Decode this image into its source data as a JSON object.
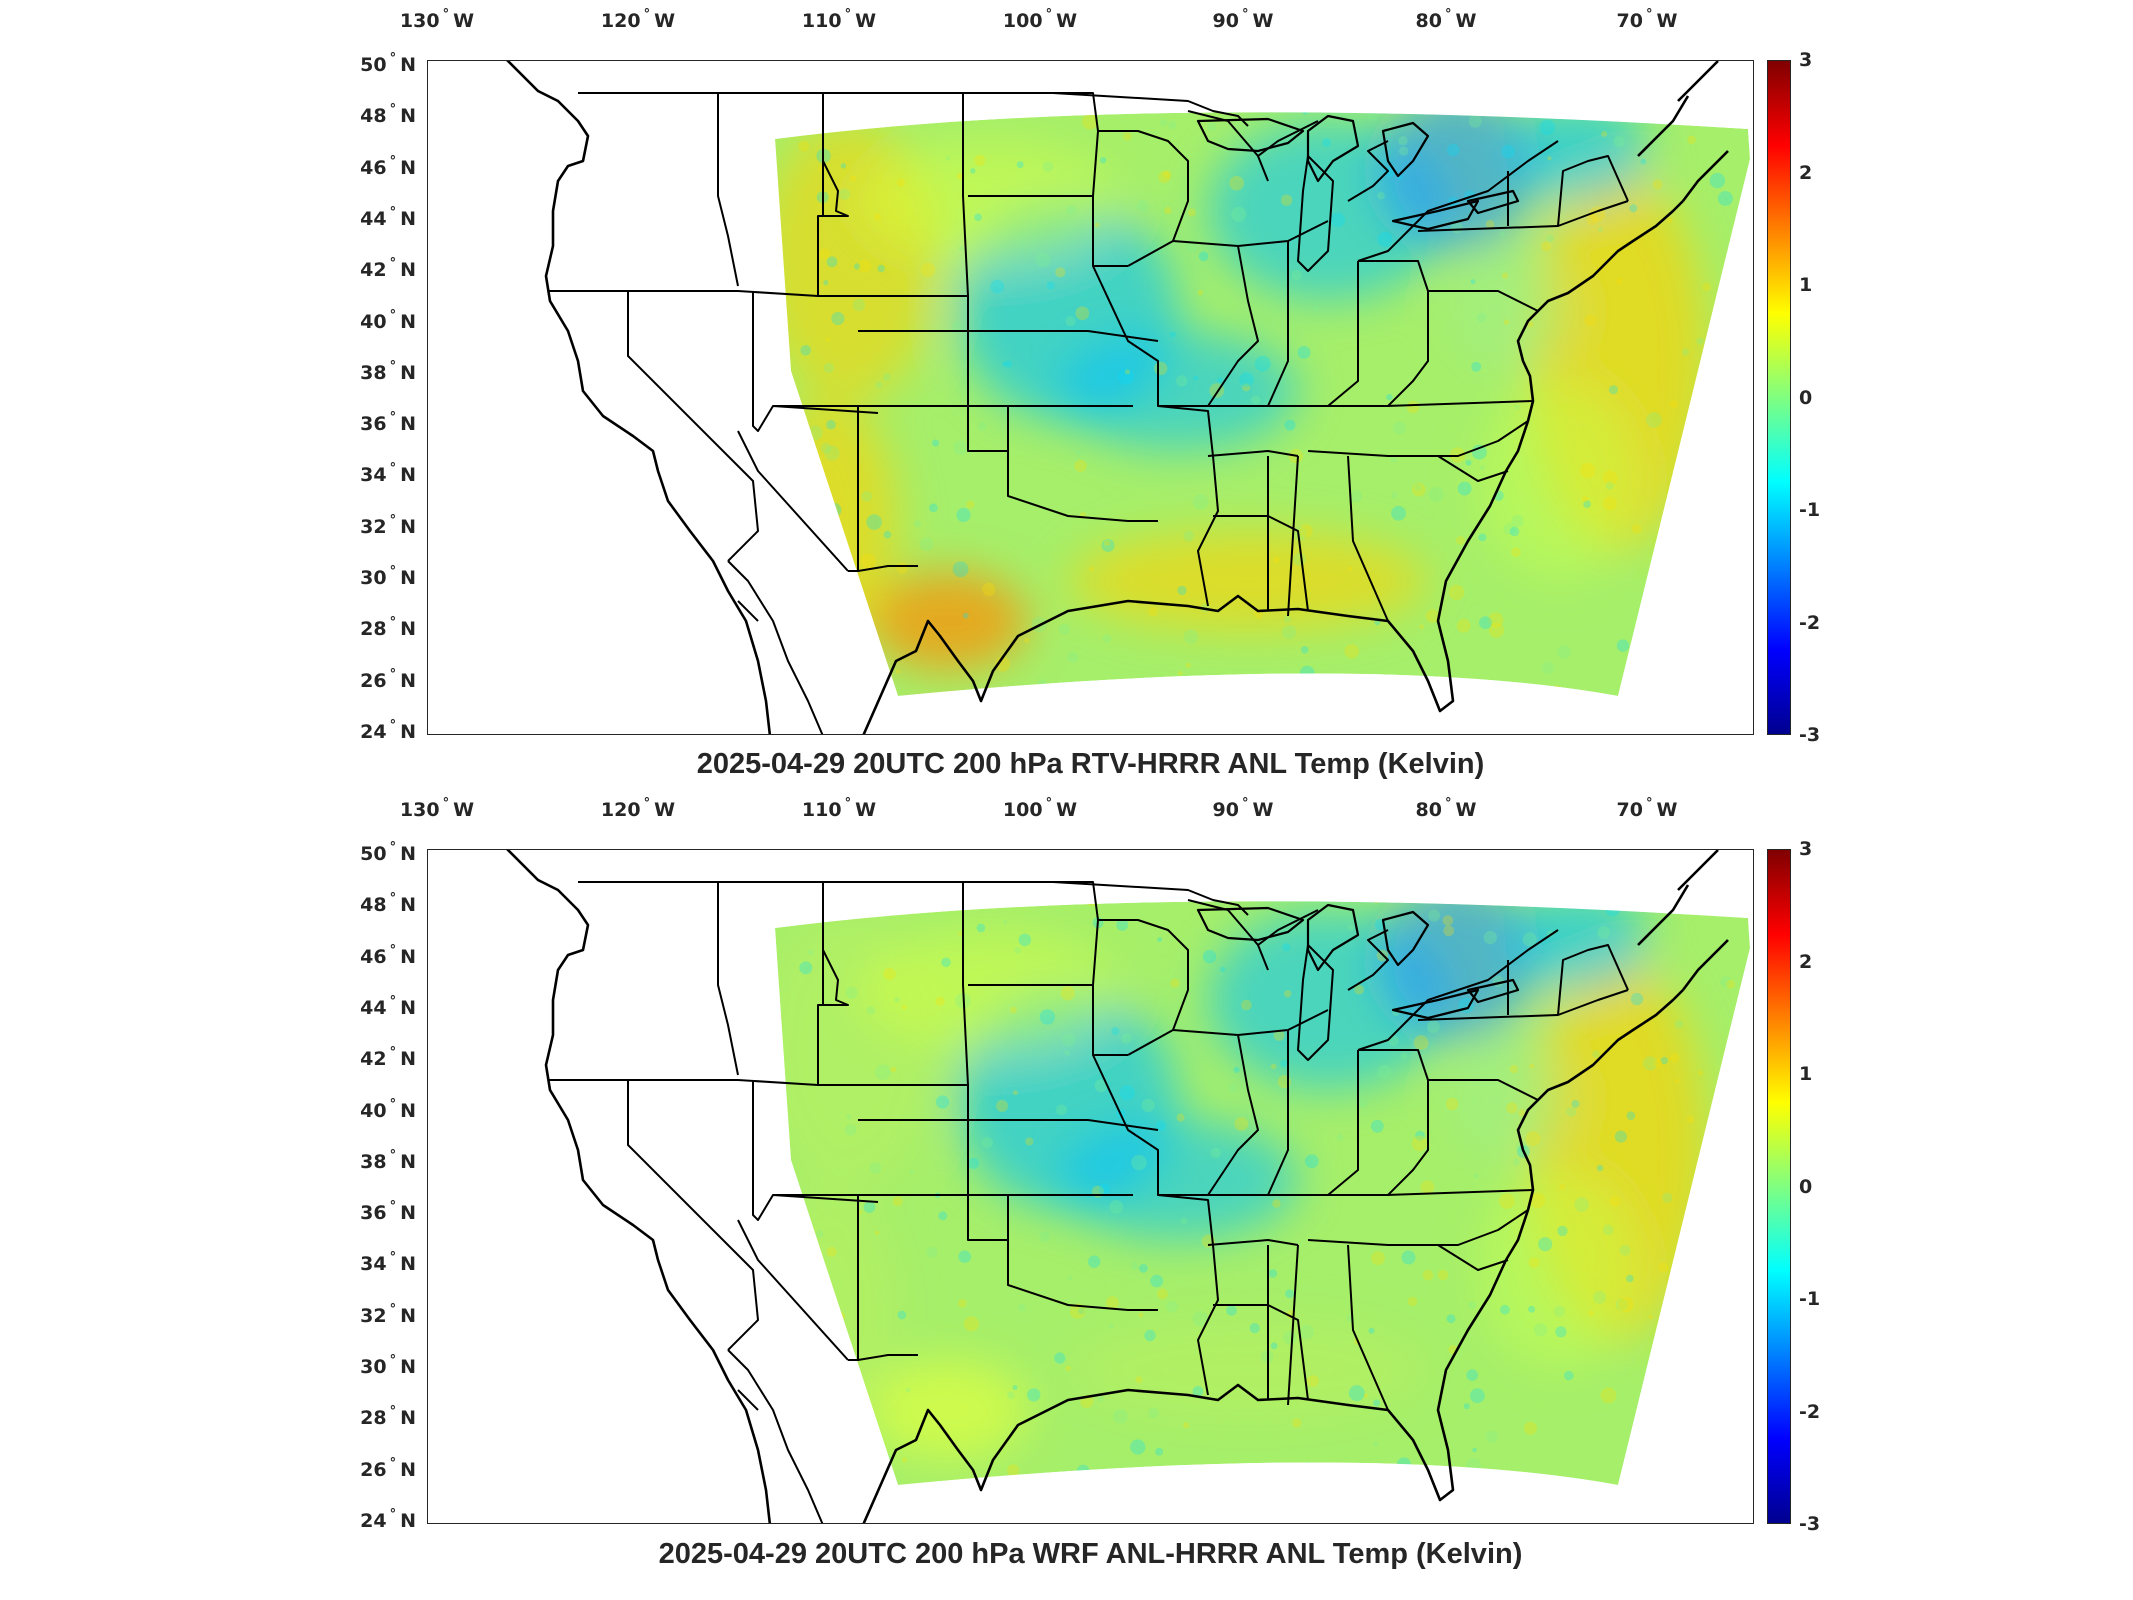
{
  "longitude_labels": [
    "130",
    "120",
    "110",
    "100",
    "90",
    "80",
    "70"
  ],
  "longitude_suffix": "W",
  "latitude_labels": [
    "50",
    "48",
    "46",
    "44",
    "42",
    "40",
    "38",
    "36",
    "34",
    "32",
    "30",
    "28",
    "26",
    "24"
  ],
  "latitude_suffix": "N",
  "degree_symbol": "°",
  "colorbar": {
    "ticks": [
      "3",
      "2",
      "1",
      "0",
      "-1",
      "-2",
      "-3"
    ],
    "min": -3,
    "max": 3,
    "colormap": "jet"
  },
  "panels": [
    {
      "title": "2025-04-29 20UTC 200 hPa RTV-HRRR ANL Temp (Kelvin)",
      "field_summary": {
        "west_mountains": "warm",
        "midwest_great_lakes": "cold",
        "gulf_coast": "warm",
        "atlantic_offshore": "warm",
        "quebec_ontario": "cold"
      }
    },
    {
      "title": "2025-04-29 20UTC 200 hPa WRF ANL-HRRR ANL Temp (Kelvin)",
      "field_summary": {
        "west_mountains": "neutral",
        "midwest_great_lakes": "cold",
        "gulf_coast": "neutral",
        "atlantic_offshore": "warm",
        "quebec_ontario": "cold"
      }
    }
  ]
}
